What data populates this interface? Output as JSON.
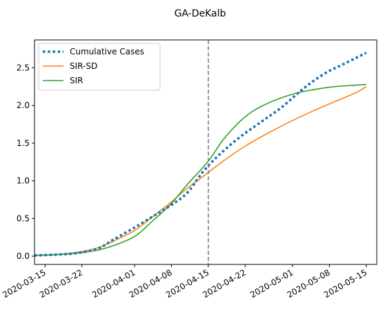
{
  "chart_data": {
    "type": "line",
    "title": "GA-DeKalb",
    "xlabel": "",
    "ylabel": "",
    "x_range": [
      "2020-03-13",
      "2020-05-17"
    ],
    "ylim": [
      -0.11,
      2.87
    ],
    "grid": false,
    "legend_placement": "top-left",
    "x_ticks": [
      "2020-03-15",
      "2020-03-22",
      "2020-04-01",
      "2020-04-08",
      "2020-04-15",
      "2020-04-22",
      "2020-05-01",
      "2020-05-08",
      "2020-05-15"
    ],
    "y_ticks": [
      0.0,
      0.5,
      1.0,
      1.5,
      2.0,
      2.5
    ],
    "y_tick_labels": [
      "0.0",
      "0.5",
      "1.0",
      "1.5",
      "2.0",
      "2.5"
    ],
    "vline": {
      "x": "2020-04-15",
      "style": "dashed",
      "color": "#7f7f7f"
    },
    "series": [
      {
        "name": "Cumulative Cases",
        "color": "#1f77b4",
        "style": "dotted",
        "x": [
          "2020-03-13",
          "2020-03-17",
          "2020-03-21",
          "2020-03-25",
          "2020-03-28",
          "2020-04-01",
          "2020-04-05",
          "2020-04-08",
          "2020-04-11",
          "2020-04-14",
          "2020-04-17",
          "2020-04-21",
          "2020-04-25",
          "2020-04-29",
          "2020-05-03",
          "2020-05-07",
          "2020-05-11",
          "2020-05-15"
        ],
        "y": [
          0.01,
          0.02,
          0.04,
          0.1,
          0.22,
          0.38,
          0.55,
          0.68,
          0.84,
          1.12,
          1.34,
          1.58,
          1.78,
          1.98,
          2.22,
          2.42,
          2.56,
          2.7
        ]
      },
      {
        "name": "SIR-SD",
        "color": "#ff7f0e",
        "style": "solid",
        "x": [
          "2020-03-13",
          "2020-03-17",
          "2020-03-21",
          "2020-03-25",
          "2020-03-28",
          "2020-04-01",
          "2020-04-04",
          "2020-04-08",
          "2020-04-11",
          "2020-04-15",
          "2020-04-18",
          "2020-04-22",
          "2020-04-26",
          "2020-05-01",
          "2020-05-05",
          "2020-05-09",
          "2020-05-13",
          "2020-05-15"
        ],
        "y": [
          0.01,
          0.02,
          0.05,
          0.11,
          0.2,
          0.34,
          0.5,
          0.72,
          0.9,
          1.11,
          1.27,
          1.46,
          1.62,
          1.8,
          1.93,
          2.05,
          2.17,
          2.25
        ]
      },
      {
        "name": "SIR",
        "color": "#2ca02c",
        "style": "solid",
        "x": [
          "2020-03-13",
          "2020-03-17",
          "2020-03-21",
          "2020-03-25",
          "2020-03-28",
          "2020-04-01",
          "2020-04-04",
          "2020-04-08",
          "2020-04-11",
          "2020-04-15",
          "2020-04-18",
          "2020-04-22",
          "2020-04-26",
          "2020-05-01",
          "2020-05-05",
          "2020-05-09",
          "2020-05-13",
          "2020-05-15"
        ],
        "y": [
          0.01,
          0.02,
          0.04,
          0.08,
          0.14,
          0.26,
          0.44,
          0.7,
          0.95,
          1.26,
          1.56,
          1.85,
          2.02,
          2.15,
          2.21,
          2.25,
          2.27,
          2.28
        ]
      }
    ]
  }
}
